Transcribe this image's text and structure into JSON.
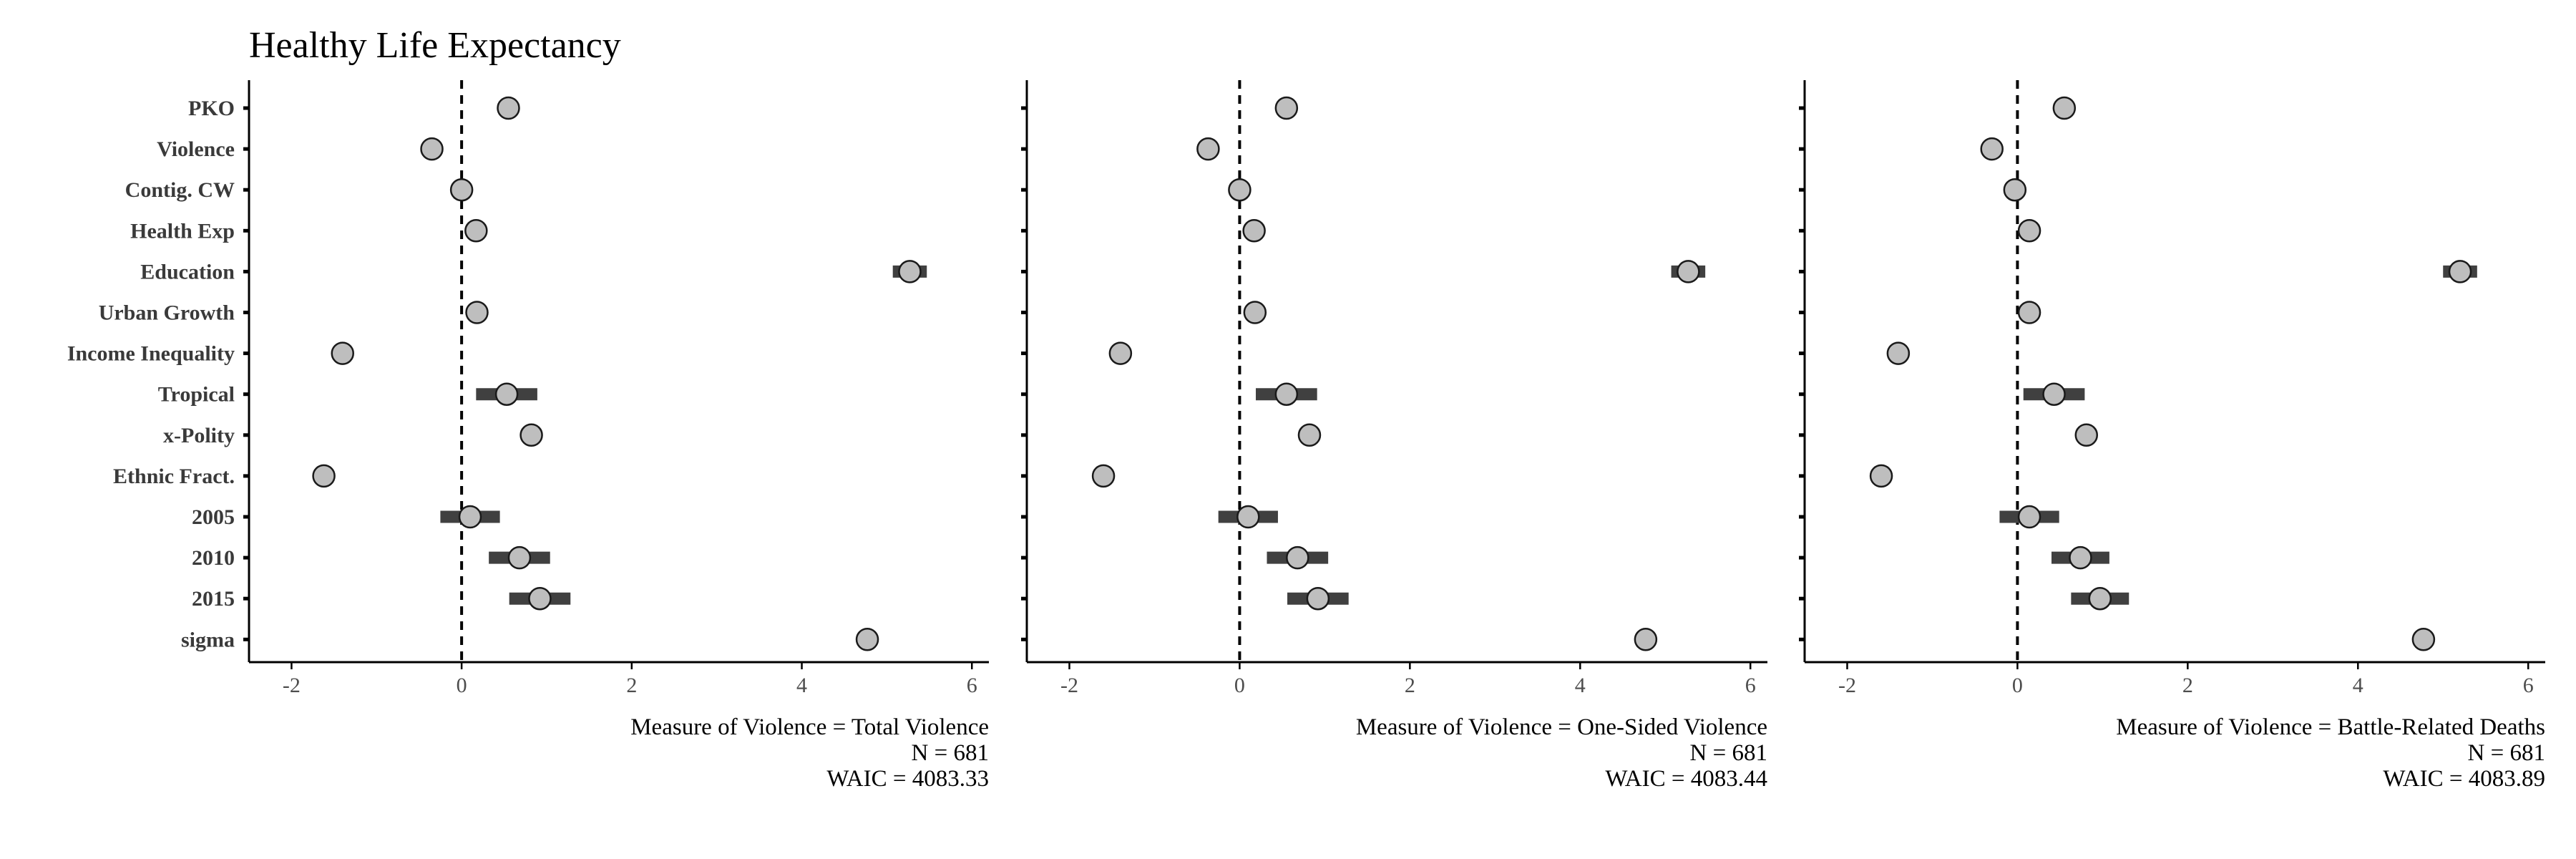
{
  "title": "Healthy Life Expectancy",
  "chart_data": {
    "type": "scatter",
    "title": "Healthy Life Expectancy",
    "xlim": [
      -2.5,
      6.2
    ],
    "x_ticks": [
      -2,
      0,
      2,
      4,
      6
    ],
    "x_tick_labels": [
      "-2",
      "0",
      "2",
      "4",
      "6"
    ],
    "reference_line_x": 0,
    "categories": [
      "PKO",
      "Violence",
      "Contig. CW",
      "Health Exp",
      "Education",
      "Urban Growth",
      "Income Inequality",
      "Tropical",
      "x-Polity",
      "Ethnic Fract.",
      "2005",
      "2010",
      "2015",
      "sigma"
    ],
    "grid": false,
    "panels": [
      {
        "caption": [
          "Measure of Violence = Total Violence",
          "N = 681",
          "WAIC = 4083.33"
        ],
        "points": [
          {
            "label": "PKO",
            "estimate": 0.55,
            "low": 0.47,
            "high": 0.63
          },
          {
            "label": "Violence",
            "estimate": -0.35,
            "low": -0.43,
            "high": -0.27
          },
          {
            "label": "Contig. CW",
            "estimate": 0.0,
            "low": -0.07,
            "high": 0.07
          },
          {
            "label": "Health Exp",
            "estimate": 0.17,
            "low": 0.1,
            "high": 0.24
          },
          {
            "label": "Education",
            "estimate": 5.27,
            "low": 5.07,
            "high": 5.47
          },
          {
            "label": "Urban Growth",
            "estimate": 0.18,
            "low": 0.11,
            "high": 0.25
          },
          {
            "label": "Income Inequality",
            "estimate": -1.4,
            "low": -1.5,
            "high": -1.3
          },
          {
            "label": "Tropical",
            "estimate": 0.53,
            "low": 0.17,
            "high": 0.89
          },
          {
            "label": "x-Polity",
            "estimate": 0.82,
            "low": 0.75,
            "high": 0.89
          },
          {
            "label": "Ethnic Fract.",
            "estimate": -1.62,
            "low": -1.72,
            "high": -1.52
          },
          {
            "label": "2005",
            "estimate": 0.1,
            "low": -0.25,
            "high": 0.45
          },
          {
            "label": "2010",
            "estimate": 0.68,
            "low": 0.32,
            "high": 1.04
          },
          {
            "label": "2015",
            "estimate": 0.92,
            "low": 0.56,
            "high": 1.28
          },
          {
            "label": "sigma",
            "estimate": 4.77,
            "low": 4.7,
            "high": 4.84
          }
        ]
      },
      {
        "caption": [
          "Measure of Violence = One-Sided Violence",
          "N = 681",
          "WAIC = 4083.44"
        ],
        "points": [
          {
            "label": "PKO",
            "estimate": 0.55,
            "low": 0.47,
            "high": 0.63
          },
          {
            "label": "Violence",
            "estimate": -0.37,
            "low": -0.45,
            "high": -0.29
          },
          {
            "label": "Contig. CW",
            "estimate": 0.0,
            "low": -0.07,
            "high": 0.07
          },
          {
            "label": "Health Exp",
            "estimate": 0.17,
            "low": 0.1,
            "high": 0.24
          },
          {
            "label": "Education",
            "estimate": 5.27,
            "low": 5.07,
            "high": 5.47
          },
          {
            "label": "Urban Growth",
            "estimate": 0.18,
            "low": 0.11,
            "high": 0.25
          },
          {
            "label": "Income Inequality",
            "estimate": -1.4,
            "low": -1.5,
            "high": -1.3
          },
          {
            "label": "Tropical",
            "estimate": 0.55,
            "low": 0.19,
            "high": 0.91
          },
          {
            "label": "x-Polity",
            "estimate": 0.82,
            "low": 0.75,
            "high": 0.89
          },
          {
            "label": "Ethnic Fract.",
            "estimate": -1.6,
            "low": -1.7,
            "high": -1.5
          },
          {
            "label": "2005",
            "estimate": 0.1,
            "low": -0.25,
            "high": 0.45
          },
          {
            "label": "2010",
            "estimate": 0.68,
            "low": 0.32,
            "high": 1.04
          },
          {
            "label": "2015",
            "estimate": 0.92,
            "low": 0.56,
            "high": 1.28
          },
          {
            "label": "sigma",
            "estimate": 4.77,
            "low": 4.7,
            "high": 4.84
          }
        ]
      },
      {
        "caption": [
          "Measure of Violence = Battle-Related Deaths",
          "N = 681",
          "WAIC = 4083.89"
        ],
        "points": [
          {
            "label": "PKO",
            "estimate": 0.55,
            "low": 0.47,
            "high": 0.63
          },
          {
            "label": "Violence",
            "estimate": -0.3,
            "low": -0.38,
            "high": -0.22
          },
          {
            "label": "Contig. CW",
            "estimate": -0.03,
            "low": -0.1,
            "high": 0.04
          },
          {
            "label": "Health Exp",
            "estimate": 0.14,
            "low": 0.07,
            "high": 0.21
          },
          {
            "label": "Education",
            "estimate": 5.2,
            "low": 5.0,
            "high": 5.4
          },
          {
            "label": "Urban Growth",
            "estimate": 0.14,
            "low": 0.07,
            "high": 0.21
          },
          {
            "label": "Income Inequality",
            "estimate": -1.4,
            "low": -1.5,
            "high": -1.3
          },
          {
            "label": "Tropical",
            "estimate": 0.43,
            "low": 0.07,
            "high": 0.79
          },
          {
            "label": "x-Polity",
            "estimate": 0.81,
            "low": 0.74,
            "high": 0.88
          },
          {
            "label": "Ethnic Fract.",
            "estimate": -1.6,
            "low": -1.7,
            "high": -1.5
          },
          {
            "label": "2005",
            "estimate": 0.14,
            "low": -0.21,
            "high": 0.49
          },
          {
            "label": "2010",
            "estimate": 0.74,
            "low": 0.4,
            "high": 1.08
          },
          {
            "label": "2015",
            "estimate": 0.97,
            "low": 0.63,
            "high": 1.31
          },
          {
            "label": "sigma",
            "estimate": 4.77,
            "low": 4.7,
            "high": 4.84
          }
        ]
      }
    ]
  },
  "colors": {
    "point_fill": "#bebebe",
    "point_stroke": "#1a1a1a",
    "interval": "#404040",
    "axis": "#000000",
    "label": "#3a3a3a"
  }
}
